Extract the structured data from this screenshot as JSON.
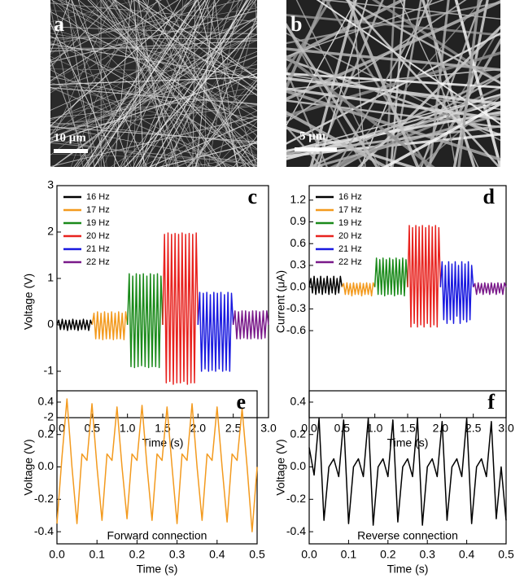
{
  "images": [
    {
      "label": "a",
      "scale_bar": "10 μm"
    },
    {
      "label": "b",
      "scale_bar": "5 μm"
    }
  ],
  "chart_data": [
    {
      "type": "line",
      "panel_label": "c",
      "x_label": "Time (s)",
      "y_label": "Voltage (V)",
      "legend": "upper left",
      "xlim": [
        0,
        3
      ],
      "ylim": [
        -2,
        3
      ],
      "xticks": [
        {
          "value": 0,
          "label": "0.0"
        },
        0.5,
        {
          "value": 1,
          "label": "1.0"
        },
        1.5,
        {
          "value": 2,
          "label": "2.0"
        },
        2.5,
        {
          "value": 3,
          "label": "3.0"
        }
      ],
      "yticks": [
        -2,
        -1,
        0,
        1,
        2,
        3
      ],
      "series": [
        {
          "name": "16 Hz",
          "color": "#000000",
          "x": [
            0,
            0.025,
            0.05,
            0.075,
            0.1,
            0.125,
            0.15,
            0.175,
            0.2,
            0.225,
            0.25,
            0.275,
            0.3,
            0.325,
            0.35,
            0.375,
            0.4,
            0.425,
            0.45,
            0.475,
            0.5
          ],
          "values": [
            0.0,
            0.1,
            -0.1,
            0.12,
            -0.1,
            0.1,
            -0.12,
            0.1,
            -0.1,
            0.12,
            -0.1,
            0.1,
            -0.12,
            0.1,
            -0.1,
            0.12,
            -0.1,
            0.1,
            -0.12,
            0.1,
            0.0
          ]
        },
        {
          "name": "17 Hz",
          "color": "#f39a1e",
          "x": [
            0.5,
            0.525,
            0.55,
            0.575,
            0.6,
            0.625,
            0.65,
            0.675,
            0.7,
            0.725,
            0.75,
            0.775,
            0.8,
            0.825,
            0.85,
            0.875,
            0.9,
            0.925,
            0.95,
            0.975,
            1.0
          ],
          "values": [
            0.0,
            0.25,
            -0.3,
            0.28,
            -0.3,
            0.25,
            -0.32,
            0.28,
            -0.3,
            0.25,
            -0.3,
            0.28,
            -0.32,
            0.25,
            -0.3,
            0.28,
            -0.3,
            0.25,
            -0.32,
            0.28,
            0.0
          ]
        },
        {
          "name": "19 Hz",
          "color": "#1a8a1a",
          "x": [
            1.0,
            1.025,
            1.05,
            1.075,
            1.1,
            1.125,
            1.15,
            1.175,
            1.2,
            1.225,
            1.25,
            1.275,
            1.3,
            1.325,
            1.35,
            1.375,
            1.4,
            1.425,
            1.45,
            1.475,
            1.5
          ],
          "values": [
            0.0,
            1.1,
            -0.9,
            1.05,
            -0.92,
            1.1,
            -0.9,
            1.08,
            -0.88,
            1.1,
            -0.9,
            1.05,
            -0.92,
            1.1,
            -0.9,
            1.08,
            -0.9,
            1.1,
            -0.92,
            1.05,
            0.0
          ]
        },
        {
          "name": "20 Hz",
          "color": "#e8221e",
          "x": [
            1.5,
            1.525,
            1.55,
            1.575,
            1.6,
            1.625,
            1.65,
            1.675,
            1.7,
            1.725,
            1.75,
            1.775,
            1.8,
            1.825,
            1.85,
            1.875,
            1.9,
            1.925,
            1.95,
            1.975,
            2.0
          ],
          "values": [
            0.0,
            1.95,
            -1.25,
            1.98,
            -1.22,
            1.95,
            -1.28,
            1.97,
            -1.25,
            1.95,
            -1.25,
            1.98,
            -1.22,
            1.95,
            -1.28,
            1.97,
            -1.25,
            1.95,
            -1.25,
            1.98,
            0.0
          ]
        },
        {
          "name": "21 Hz",
          "color": "#1a1ae0",
          "x": [
            2.0,
            2.025,
            2.05,
            2.075,
            2.1,
            2.125,
            2.15,
            2.175,
            2.2,
            2.225,
            2.25,
            2.275,
            2.3,
            2.325,
            2.35,
            2.375,
            2.4,
            2.425,
            2.45,
            2.475,
            2.5
          ],
          "values": [
            0.0,
            0.7,
            -1.0,
            0.68,
            -0.95,
            0.7,
            -1.0,
            0.65,
            -0.98,
            0.7,
            -1.0,
            0.68,
            -0.95,
            0.7,
            -1.0,
            0.65,
            -0.98,
            0.7,
            -1.0,
            0.68,
            0.0
          ]
        },
        {
          "name": "22 Hz",
          "color": "#7a1a8a",
          "x": [
            2.5,
            2.525,
            2.55,
            2.575,
            2.6,
            2.625,
            2.65,
            2.675,
            2.7,
            2.725,
            2.75,
            2.775,
            2.8,
            2.825,
            2.85,
            2.875,
            2.9,
            2.925,
            2.95,
            2.975,
            3.0
          ],
          "values": [
            0.0,
            0.3,
            -0.3,
            0.28,
            -0.3,
            0.3,
            -0.28,
            0.3,
            -0.3,
            0.28,
            -0.3,
            0.3,
            -0.28,
            0.3,
            -0.3,
            0.28,
            -0.3,
            0.3,
            -0.28,
            0.3,
            0.0
          ]
        }
      ]
    },
    {
      "type": "line",
      "panel_label": "d",
      "x_label": "Time (s)",
      "y_label": "Current (μA)",
      "legend": "upper left",
      "xlim": [
        0,
        3
      ],
      "ylim": [
        -1.8,
        1.4
      ],
      "xticks": [
        {
          "value": 0,
          "label": "0.0"
        },
        0.5,
        {
          "value": 1,
          "label": "1.0"
        },
        1.5,
        {
          "value": 2,
          "label": "2.0"
        },
        2.5,
        {
          "value": 3,
          "label": "3.0"
        }
      ],
      "yticks": [
        -0.6,
        -0.3,
        {
          "value": 0,
          "label": "0.0"
        },
        0.3,
        0.6,
        0.9,
        1.2
      ],
      "series": [
        {
          "name": "16 Hz",
          "color": "#000000",
          "x": [
            0,
            0.025,
            0.05,
            0.075,
            0.1,
            0.125,
            0.15,
            0.175,
            0.2,
            0.225,
            0.25,
            0.275,
            0.3,
            0.325,
            0.35,
            0.375,
            0.4,
            0.425,
            0.45,
            0.475,
            0.5
          ],
          "values": [
            0.0,
            0.12,
            -0.08,
            0.15,
            -0.1,
            0.12,
            -0.08,
            0.15,
            -0.1,
            0.12,
            -0.08,
            0.15,
            -0.1,
            0.12,
            -0.08,
            0.15,
            -0.1,
            0.12,
            -0.08,
            0.15,
            0.0
          ]
        },
        {
          "name": "17 Hz",
          "color": "#f39a1e",
          "x": [
            0.5,
            0.525,
            0.55,
            0.575,
            0.6,
            0.625,
            0.65,
            0.675,
            0.7,
            0.725,
            0.75,
            0.775,
            0.8,
            0.825,
            0.85,
            0.875,
            0.9,
            0.925,
            0.95,
            0.975,
            1.0
          ],
          "values": [
            0.0,
            0.05,
            -0.1,
            0.06,
            -0.1,
            0.05,
            -0.12,
            0.06,
            -0.1,
            0.05,
            -0.1,
            0.06,
            -0.12,
            0.05,
            -0.1,
            0.06,
            -0.1,
            0.05,
            -0.12,
            0.06,
            0.0
          ]
        },
        {
          "name": "19 Hz",
          "color": "#1a8a1a",
          "x": [
            1.0,
            1.025,
            1.05,
            1.075,
            1.1,
            1.125,
            1.15,
            1.175,
            1.2,
            1.225,
            1.25,
            1.275,
            1.3,
            1.325,
            1.35,
            1.375,
            1.4,
            1.425,
            1.45,
            1.475,
            1.5
          ],
          "values": [
            0.0,
            0.4,
            -0.1,
            0.38,
            -0.1,
            0.4,
            -0.12,
            0.38,
            -0.1,
            0.4,
            -0.1,
            0.38,
            -0.12,
            0.4,
            -0.1,
            0.38,
            -0.1,
            0.4,
            -0.12,
            0.38,
            0.0
          ]
        },
        {
          "name": "20 Hz",
          "color": "#e8221e",
          "x": [
            1.5,
            1.525,
            1.55,
            1.575,
            1.6,
            1.625,
            1.65,
            1.675,
            1.7,
            1.725,
            1.75,
            1.775,
            1.8,
            1.825,
            1.85,
            1.875,
            1.9,
            1.925,
            1.95,
            1.975,
            2.0
          ],
          "values": [
            0.0,
            0.85,
            -0.55,
            0.82,
            -0.5,
            0.85,
            -0.55,
            0.83,
            -0.52,
            0.85,
            -0.55,
            0.82,
            -0.5,
            0.85,
            -0.55,
            0.83,
            -0.52,
            0.85,
            -0.55,
            0.82,
            0.0
          ]
        },
        {
          "name": "21 Hz",
          "color": "#1a1ae0",
          "x": [
            2.0,
            2.025,
            2.05,
            2.075,
            2.1,
            2.125,
            2.15,
            2.175,
            2.2,
            2.225,
            2.25,
            2.275,
            2.3,
            2.325,
            2.35,
            2.375,
            2.4,
            2.425,
            2.45,
            2.475,
            2.5
          ],
          "values": [
            0.0,
            0.35,
            -0.45,
            0.3,
            -0.5,
            0.35,
            -0.45,
            0.32,
            -0.5,
            0.35,
            -0.4,
            0.3,
            -0.5,
            0.35,
            -0.45,
            0.32,
            -0.48,
            0.35,
            -0.45,
            0.3,
            0.0
          ]
        },
        {
          "name": "22 Hz",
          "color": "#7a1a8a",
          "x": [
            2.5,
            2.525,
            2.55,
            2.575,
            2.6,
            2.625,
            2.65,
            2.675,
            2.7,
            2.725,
            2.75,
            2.775,
            2.8,
            2.825,
            2.85,
            2.875,
            2.9,
            2.925,
            2.95,
            2.975,
            3.0
          ],
          "values": [
            0.0,
            0.05,
            -0.1,
            0.06,
            -0.08,
            0.05,
            -0.1,
            0.06,
            -0.08,
            0.05,
            -0.1,
            0.06,
            -0.08,
            0.05,
            -0.1,
            0.06,
            -0.08,
            0.05,
            -0.1,
            0.06,
            0.0
          ]
        }
      ]
    },
    {
      "type": "line",
      "panel_label": "e",
      "x_label": "Time (s)",
      "y_label": "Voltage (V)",
      "annotation": "Forward connection",
      "xlim": [
        0,
        0.5
      ],
      "ylim": [
        -0.475,
        0.47
      ],
      "xticks": [
        {
          "value": 0,
          "label": "0.0"
        },
        0.1,
        0.2,
        0.3,
        0.4,
        0.5
      ],
      "yticks": [
        -0.4,
        -0.2,
        {
          "value": 0,
          "label": "0.0"
        },
        0.2,
        0.4
      ],
      "series": [
        {
          "color": "#f39a1e",
          "x": [
            0,
            0.0125,
            0.025,
            0.0375,
            0.05,
            0.0625,
            0.075,
            0.0875,
            0.1,
            0.1125,
            0.125,
            0.1375,
            0.15,
            0.1625,
            0.175,
            0.1875,
            0.2,
            0.2125,
            0.225,
            0.2375,
            0.25,
            0.2625,
            0.275,
            0.2875,
            0.3,
            0.3125,
            0.325,
            0.3375,
            0.35,
            0.3625,
            0.375,
            0.3875,
            0.4,
            0.4125,
            0.425,
            0.4375,
            0.45,
            0.4625,
            0.475,
            0.4875,
            0.5
          ],
          "values": [
            -0.35,
            0.06,
            0.42,
            0.0,
            -0.35,
            0.08,
            0.04,
            0.39,
            0.0,
            -0.33,
            0.08,
            0.04,
            0.37,
            0.0,
            -0.32,
            0.08,
            0.04,
            0.38,
            0.0,
            -0.33,
            0.08,
            0.04,
            0.37,
            0.0,
            -0.35,
            0.08,
            0.04,
            0.39,
            0.0,
            -0.33,
            0.08,
            0.04,
            0.37,
            0.0,
            -0.34,
            0.08,
            0.04,
            0.36,
            0.0,
            -0.4,
            0.0
          ]
        }
      ]
    },
    {
      "type": "line",
      "panel_label": "f",
      "x_label": "Time (s)",
      "y_label": "Voltage (V)",
      "annotation": "Reverse connection",
      "xlim": [
        0,
        0.5
      ],
      "ylim": [
        -0.475,
        0.47
      ],
      "xticks": [
        {
          "value": 0,
          "label": "0.0"
        },
        0.1,
        0.2,
        0.3,
        0.4,
        0.5
      ],
      "yticks": [
        -0.4,
        -0.2,
        {
          "value": 0,
          "label": "0.0"
        },
        0.2,
        0.4
      ],
      "series": [
        {
          "color": "#000000",
          "x": [
            0,
            0.0125,
            0.025,
            0.0375,
            0.05,
            0.0625,
            0.075,
            0.0875,
            0.1,
            0.1125,
            0.125,
            0.1375,
            0.15,
            0.1625,
            0.175,
            0.1875,
            0.2,
            0.2125,
            0.225,
            0.2375,
            0.25,
            0.2625,
            0.275,
            0.2875,
            0.3,
            0.3125,
            0.325,
            0.3375,
            0.35,
            0.3625,
            0.375,
            0.3875,
            0.4,
            0.4125,
            0.425,
            0.4375,
            0.45,
            0.4625,
            0.475,
            0.4875,
            0.5
          ],
          "values": [
            0.12,
            -0.05,
            0.3,
            -0.33,
            0.0,
            0.05,
            -0.06,
            0.29,
            -0.35,
            0.0,
            0.05,
            -0.06,
            0.3,
            -0.36,
            0.0,
            0.05,
            -0.06,
            0.29,
            -0.34,
            0.0,
            0.05,
            -0.06,
            0.3,
            -0.36,
            0.0,
            0.05,
            -0.06,
            0.28,
            -0.33,
            0.0,
            0.05,
            -0.06,
            0.3,
            -0.35,
            0.0,
            0.05,
            -0.06,
            0.28,
            -0.32,
            0.0,
            -0.33
          ]
        }
      ]
    }
  ]
}
